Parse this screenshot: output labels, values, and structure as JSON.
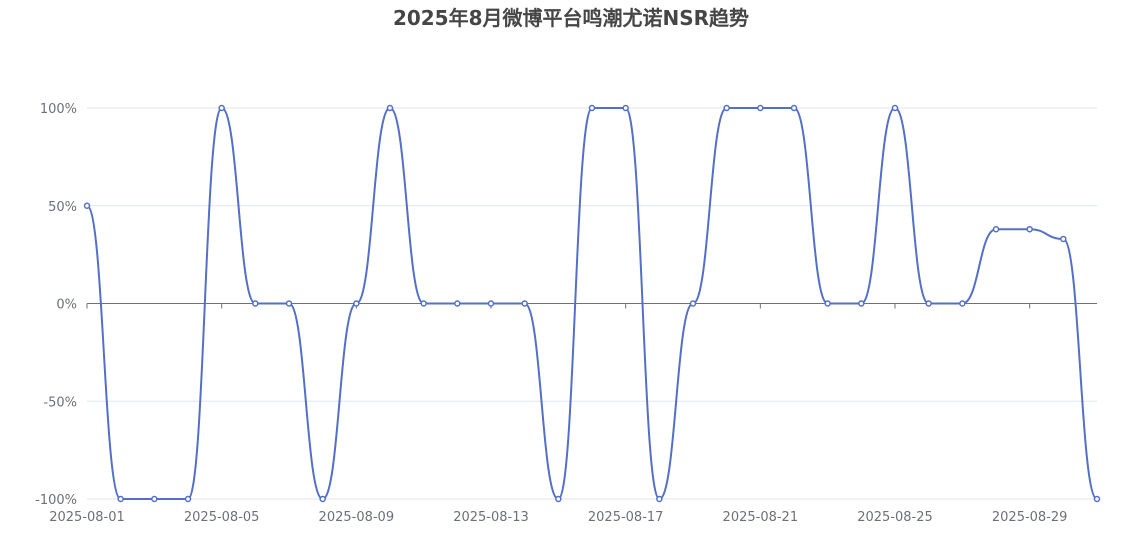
{
  "chart_data": {
    "type": "line",
    "title": "2025年8月微博平台鸣潮尤诺NSR趋势",
    "xlabel": "",
    "ylabel": "",
    "ylim": [
      -100,
      100
    ],
    "yticks": [
      "-100%",
      "-50%",
      "0%",
      "50%",
      "100%"
    ],
    "xticks": [
      "2025-08-01",
      "2025-08-05",
      "2025-08-09",
      "2025-08-13",
      "2025-08-17",
      "2025-08-21",
      "2025-08-25",
      "2025-08-29"
    ],
    "grid": true,
    "smooth": true,
    "colors": {
      "series": "#5470c6",
      "grid": "#e0e6f1",
      "axis": "#6e7079"
    },
    "series": [
      {
        "x": [
          "2025-08-01",
          "2025-08-02",
          "2025-08-03",
          "2025-08-04",
          "2025-08-05",
          "2025-08-06",
          "2025-08-07",
          "2025-08-08",
          "2025-08-09",
          "2025-08-10",
          "2025-08-11",
          "2025-08-12",
          "2025-08-13",
          "2025-08-14",
          "2025-08-15",
          "2025-08-16",
          "2025-08-17",
          "2025-08-18",
          "2025-08-19",
          "2025-08-20",
          "2025-08-21",
          "2025-08-22",
          "2025-08-23",
          "2025-08-24",
          "2025-08-25",
          "2025-08-26",
          "2025-08-27",
          "2025-08-28",
          "2025-08-29",
          "2025-08-30",
          "2025-08-31"
        ],
        "values": [
          50,
          -100,
          -100,
          -100,
          100,
          0,
          0,
          -100,
          0,
          100,
          0,
          0,
          0,
          0,
          -100,
          100,
          100,
          -100,
          0,
          100,
          100,
          100,
          0,
          0,
          100,
          0,
          0,
          38,
          38,
          33,
          -100
        ]
      }
    ]
  }
}
